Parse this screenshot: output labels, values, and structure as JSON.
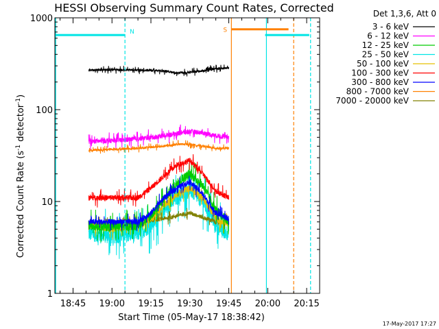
{
  "chart_data": {
    "type": "line",
    "title": "HESSI Observing Summary Count Rates, Corrected",
    "xlabel": "Start Time (05-May-17 18:38:42)",
    "ylabel_main": "Corrected Count Rate (s",
    "ylabel_exp1": "-1",
    "ylabel_mid": " detector",
    "ylabel_exp2": "-1",
    "ylabel_end": ")",
    "x_units": "minutes of day",
    "xlim": [
      1118,
      1220
    ],
    "ylim": [
      1,
      1000
    ],
    "y_scale": "log",
    "x_ticks": [
      {
        "value": 1125,
        "label": "18:45"
      },
      {
        "value": 1140,
        "label": "19:00"
      },
      {
        "value": 1155,
        "label": "19:15"
      },
      {
        "value": 1170,
        "label": "19:30"
      },
      {
        "value": 1185,
        "label": "19:45"
      },
      {
        "value": 1200,
        "label": "20:00"
      },
      {
        "value": 1215,
        "label": "20:15"
      }
    ],
    "y_ticks": [
      {
        "value": 1,
        "label": "1"
      },
      {
        "value": 10,
        "label": "10"
      },
      {
        "value": 100,
        "label": "100"
      },
      {
        "value": 1000,
        "label": "1000"
      }
    ],
    "legend_title": "Det 1,3,6, Att 0",
    "legend_position": "right",
    "timestamp": "17-May-2017 17:27",
    "series": [
      {
        "name": "3 - 6 keV",
        "color": "#000000",
        "noise": 0.03,
        "x": [
          1131,
          1140,
          1150,
          1160,
          1165,
          1170,
          1175,
          1180,
          1185
        ],
        "y": [
          270,
          272,
          270,
          265,
          250,
          255,
          265,
          280,
          285
        ]
      },
      {
        "name": "6 - 12 keV",
        "color": "#ff00ff",
        "noise": 0.06,
        "x": [
          1131,
          1140,
          1150,
          1160,
          1165,
          1170,
          1175,
          1180,
          1185
        ],
        "y": [
          45,
          46,
          48,
          52,
          55,
          58,
          56,
          52,
          50
        ]
      },
      {
        "name": "12 - 25 keV",
        "color": "#00cc00",
        "noise": 0.12,
        "x": [
          1131,
          1140,
          1150,
          1155,
          1160,
          1165,
          1170,
          1175,
          1180,
          1185
        ],
        "y": [
          5.5,
          5.3,
          5.5,
          7.0,
          10.5,
          16.0,
          20.0,
          15.0,
          8.0,
          6.0
        ]
      },
      {
        "name": "25 - 50 keV",
        "color": "#00e5e5",
        "noise": 0.2,
        "x": [
          1131,
          1140,
          1150,
          1155,
          1160,
          1165,
          1170,
          1175,
          1180,
          1185
        ],
        "y": [
          4.5,
          4.2,
          4.5,
          5.5,
          8.0,
          11.0,
          13.5,
          10.0,
          5.5,
          4.5
        ]
      },
      {
        "name": "50 - 100 keV",
        "color": "#e5c000",
        "noise": 0.08,
        "x": [
          1131,
          1140,
          1150,
          1155,
          1160,
          1165,
          1170,
          1175,
          1180,
          1185
        ],
        "y": [
          5.5,
          5.0,
          5.5,
          6.5,
          9.0,
          12.0,
          14.0,
          11.0,
          6.5,
          5.5
        ]
      },
      {
        "name": "100 - 300 keV",
        "color": "#ff0000",
        "noise": 0.07,
        "x": [
          1131,
          1140,
          1150,
          1155,
          1160,
          1165,
          1170,
          1175,
          1180,
          1185
        ],
        "y": [
          11.0,
          11.0,
          11.0,
          14.0,
          19.0,
          25.0,
          28.0,
          20.0,
          13.0,
          11.0
        ]
      },
      {
        "name": "300 - 800 keV",
        "color": "#0000ff",
        "noise": 0.07,
        "x": [
          1131,
          1140,
          1150,
          1155,
          1160,
          1165,
          1170,
          1175,
          1180,
          1185
        ],
        "y": [
          6.0,
          6.0,
          6.0,
          7.5,
          11.0,
          14.0,
          16.5,
          12.0,
          7.5,
          6.5
        ]
      },
      {
        "name": "800 - 7000 keV",
        "color": "#ff8000",
        "noise": 0.03,
        "x": [
          1131,
          1140,
          1150,
          1160,
          1165,
          1170,
          1175,
          1180,
          1185
        ],
        "y": [
          36,
          37,
          38,
          40,
          42,
          42,
          40,
          38,
          38
        ]
      },
      {
        "name": "7000 - 20000 keV",
        "color": "#808000",
        "noise": 0.05,
        "x": [
          1131,
          1140,
          1150,
          1160,
          1170,
          1180,
          1185
        ],
        "y": [
          5.8,
          5.7,
          5.9,
          6.5,
          7.5,
          6.0,
          5.8
        ]
      }
    ],
    "night_segments": [
      {
        "label": "N",
        "color": "#00e5e5",
        "x_start": 1118,
        "x_end": 1145,
        "y": 650
      },
      {
        "label": "",
        "color": "#00e5e5",
        "x_start": 1199,
        "x_end": 1216,
        "y": 650
      }
    ],
    "saa_segments": [
      {
        "label": "S",
        "color": "#ff8000",
        "x_start": 1186,
        "x_end": 1208,
        "y": 750
      }
    ],
    "vlines": [
      {
        "x": 1118.3,
        "color": "#00e5e5",
        "style": "solid"
      },
      {
        "x": 1145,
        "color": "#00e5e5",
        "style": "dashed"
      },
      {
        "x": 1186,
        "color": "#ff8000",
        "style": "solid"
      },
      {
        "x": 1199.5,
        "color": "#00e5e5",
        "style": "solid"
      },
      {
        "x": 1210,
        "color": "#ff8000",
        "style": "dashed"
      },
      {
        "x": 1216.5,
        "color": "#00e5e5",
        "style": "dashed"
      }
    ]
  }
}
